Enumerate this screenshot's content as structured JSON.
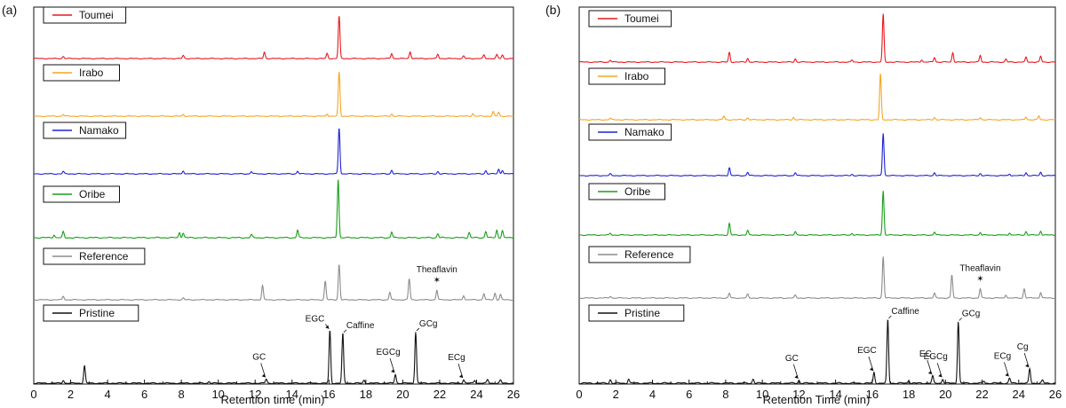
{
  "chart_data": [
    {
      "panel": "(a)",
      "type": "line",
      "xlabel": "Retention time (min)",
      "xlim": [
        0,
        26
      ],
      "xticks": [
        "0",
        "2",
        "4",
        "6",
        "8",
        "10",
        "12",
        "14",
        "16",
        "18",
        "20",
        "22",
        "24",
        "26"
      ],
      "series": [
        {
          "name": "Toumei",
          "color": "#e8191f",
          "peaks": [
            [
              1.6,
              0.05
            ],
            [
              8.1,
              0.07
            ],
            [
              12.5,
              0.15
            ],
            [
              15.9,
              0.12
            ],
            [
              16.55,
              1.0
            ],
            [
              19.4,
              0.12
            ],
            [
              20.4,
              0.16
            ],
            [
              21.9,
              0.1
            ],
            [
              23.3,
              0.06
            ],
            [
              24.4,
              0.08
            ],
            [
              25.1,
              0.09
            ],
            [
              25.4,
              0.08
            ]
          ]
        },
        {
          "name": "Irabo",
          "color": "#f5a623",
          "peaks": [
            [
              1.6,
              0.04
            ],
            [
              8.1,
              0.04
            ],
            [
              15.9,
              0.05
            ],
            [
              16.55,
              1.0
            ],
            [
              19.4,
              0.05
            ],
            [
              23.8,
              0.06
            ],
            [
              24.9,
              0.1
            ],
            [
              25.2,
              0.09
            ]
          ]
        },
        {
          "name": "Namako",
          "color": "#1f22d6",
          "peaks": [
            [
              1.6,
              0.05
            ],
            [
              8.1,
              0.07
            ],
            [
              11.8,
              0.05
            ],
            [
              14.3,
              0.06
            ],
            [
              16.55,
              1.0
            ],
            [
              19.4,
              0.08
            ],
            [
              21.9,
              0.05
            ],
            [
              24.5,
              0.07
            ],
            [
              25.2,
              0.1
            ],
            [
              25.4,
              0.08
            ]
          ]
        },
        {
          "name": "Oribe",
          "color": "#1a9e1a",
          "peaks": [
            [
              1.1,
              0.05
            ],
            [
              1.6,
              0.1
            ],
            [
              7.9,
              0.09
            ],
            [
              8.1,
              0.08
            ],
            [
              11.8,
              0.05
            ],
            [
              14.3,
              0.13
            ],
            [
              16.5,
              1.0
            ],
            [
              19.4,
              0.1
            ],
            [
              21.9,
              0.07
            ],
            [
              23.6,
              0.09
            ],
            [
              24.5,
              0.11
            ],
            [
              25.1,
              0.13
            ],
            [
              25.4,
              0.12
            ]
          ]
        },
        {
          "name": "Reference",
          "color": "#8c8c8c",
          "peaks": [
            [
              1.6,
              0.08
            ],
            [
              8.1,
              0.04
            ],
            [
              12.4,
              0.32
            ],
            [
              15.8,
              0.42
            ],
            [
              16.55,
              0.8
            ],
            [
              19.3,
              0.17
            ],
            [
              20.35,
              0.47
            ],
            [
              21.85,
              0.22
            ],
            [
              23.3,
              0.1
            ],
            [
              24.4,
              0.14
            ],
            [
              25.0,
              0.15
            ],
            [
              25.3,
              0.12
            ]
          ]
        },
        {
          "name": "Pristine",
          "color": "#111111",
          "peaks": [
            [
              1.6,
              0.05
            ],
            [
              2.75,
              0.3
            ],
            [
              9.5,
              0.03
            ],
            [
              12.6,
              0.07
            ],
            [
              16.05,
              0.9
            ],
            [
              16.75,
              0.85
            ],
            [
              17.9,
              0.05
            ],
            [
              19.6,
              0.15
            ],
            [
              20.7,
              0.88
            ],
            [
              23.3,
              0.06
            ],
            [
              23.9,
              0.05
            ],
            [
              24.6,
              0.06
            ],
            [
              25.3,
              0.05
            ]
          ]
        }
      ],
      "annotations": [
        {
          "text": "GC",
          "x": 12.6
        },
        {
          "text": "EGC",
          "x": 16.05
        },
        {
          "text": "Caffine",
          "x": 16.75
        },
        {
          "text": "EGCg",
          "x": 19.6
        },
        {
          "text": "GCg",
          "x": 20.7
        },
        {
          "text": "ECg",
          "x": 23.3
        },
        {
          "text": "Theaflavin",
          "x": 21.85
        }
      ]
    },
    {
      "panel": "(b)",
      "type": "line",
      "xlabel": "Retention Time (min)",
      "xlim": [
        0,
        26
      ],
      "xticks": [
        "0",
        "2",
        "4",
        "6",
        "8",
        "10",
        "12",
        "14",
        "16",
        "18",
        "20",
        "22",
        "24",
        "26"
      ],
      "series": [
        {
          "name": "Toumei",
          "color": "#e8191f",
          "peaks": [
            [
              1.7,
              0.04
            ],
            [
              8.2,
              0.2
            ],
            [
              9.2,
              0.08
            ],
            [
              11.8,
              0.07
            ],
            [
              14.9,
              0.04
            ],
            [
              16.6,
              1.0
            ],
            [
              18.7,
              0.05
            ],
            [
              19.4,
              0.1
            ],
            [
              20.4,
              0.2
            ],
            [
              21.9,
              0.14
            ],
            [
              23.3,
              0.06
            ],
            [
              24.4,
              0.1
            ],
            [
              25.2,
              0.12
            ]
          ]
        },
        {
          "name": "Irabo",
          "color": "#f5a623",
          "peaks": [
            [
              1.7,
              0.03
            ],
            [
              7.9,
              0.08
            ],
            [
              9.2,
              0.04
            ],
            [
              11.7,
              0.05
            ],
            [
              16.45,
              1.0
            ],
            [
              19.4,
              0.05
            ],
            [
              21.9,
              0.05
            ],
            [
              24.4,
              0.06
            ],
            [
              25.1,
              0.08
            ]
          ]
        },
        {
          "name": "Namako",
          "color": "#1f22d6",
          "peaks": [
            [
              1.7,
              0.04
            ],
            [
              8.2,
              0.19
            ],
            [
              9.2,
              0.08
            ],
            [
              11.8,
              0.07
            ],
            [
              14.9,
              0.03
            ],
            [
              16.6,
              1.0
            ],
            [
              19.4,
              0.07
            ],
            [
              21.9,
              0.05
            ],
            [
              23.5,
              0.04
            ],
            [
              24.4,
              0.07
            ],
            [
              25.2,
              0.08
            ]
          ]
        },
        {
          "name": "Oribe",
          "color": "#1a9e1a",
          "peaks": [
            [
              1.7,
              0.04
            ],
            [
              8.2,
              0.26
            ],
            [
              9.2,
              0.1
            ],
            [
              11.8,
              0.07
            ],
            [
              14.9,
              0.04
            ],
            [
              16.6,
              1.0
            ],
            [
              19.4,
              0.07
            ],
            [
              21.9,
              0.06
            ],
            [
              23.5,
              0.05
            ],
            [
              24.4,
              0.08
            ],
            [
              25.2,
              0.09
            ]
          ]
        },
        {
          "name": "Reference",
          "color": "#8c8c8c",
          "peaks": [
            [
              1.7,
              0.04
            ],
            [
              8.2,
              0.1
            ],
            [
              9.2,
              0.08
            ],
            [
              11.8,
              0.06
            ],
            [
              16.6,
              0.9
            ],
            [
              19.4,
              0.1
            ],
            [
              20.35,
              0.5
            ],
            [
              21.9,
              0.2
            ],
            [
              23.3,
              0.07
            ],
            [
              24.3,
              0.2
            ],
            [
              25.2,
              0.12
            ]
          ]
        },
        {
          "name": "Pristine",
          "color": "#111111",
          "peaks": [
            [
              1.7,
              0.05
            ],
            [
              2.7,
              0.06
            ],
            [
              9.5,
              0.06
            ],
            [
              12.0,
              0.04
            ],
            [
              16.1,
              0.15
            ],
            [
              16.85,
              0.9
            ],
            [
              18.0,
              0.04
            ],
            [
              19.3,
              0.1
            ],
            [
              19.85,
              0.06
            ],
            [
              20.7,
              0.87
            ],
            [
              22.1,
              0.03
            ],
            [
              23.5,
              0.07
            ],
            [
              24.6,
              0.2
            ],
            [
              25.3,
              0.04
            ]
          ]
        }
      ],
      "annotations": [
        {
          "text": "GC",
          "x": 12.0
        },
        {
          "text": "EGC",
          "x": 16.1
        },
        {
          "text": "Caffine",
          "x": 16.85
        },
        {
          "text": "EC",
          "x": 19.3
        },
        {
          "text": "EGCg",
          "x": 19.85
        },
        {
          "text": "GCg",
          "x": 20.7
        },
        {
          "text": "ECg",
          "x": 23.5
        },
        {
          "text": "Cg",
          "x": 24.6
        },
        {
          "text": "Theaflavin",
          "x": 21.9
        }
      ]
    }
  ]
}
